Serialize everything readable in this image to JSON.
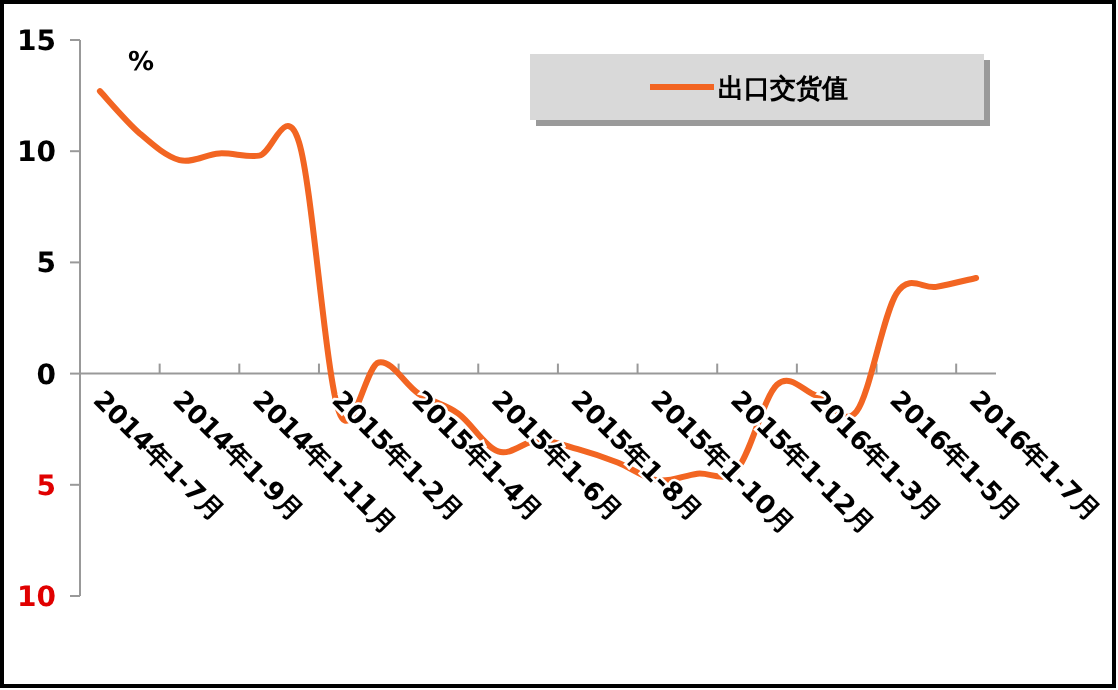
{
  "chart_data": {
    "type": "line",
    "categories": [
      "2014年1-7月",
      null,
      "2014年1-9月",
      null,
      "2014年1-11月",
      null,
      "2015年1-2月",
      null,
      "2015年1-4月",
      null,
      "2015年1-6月",
      null,
      "2015年1-8月",
      null,
      "2015年1-10月",
      null,
      "2015年1-12月",
      null,
      "2016年1-3月",
      null,
      "2016年1-5月",
      null,
      "2016年1-7月"
    ],
    "series": [
      {
        "name": "出口交货值",
        "color": "#f26522",
        "values": [
          12.7,
          10.8,
          9.6,
          9.9,
          9.8,
          10.4,
          -1.7,
          0.5,
          -0.9,
          -1.8,
          -3.5,
          -3.0,
          -3.4,
          -4.0,
          -4.8,
          -4.5,
          -4.3,
          -0.5,
          -1.0,
          -1.7,
          3.6,
          3.9,
          4.3
        ]
      }
    ],
    "ylabel": "%",
    "ylim": [
      -10,
      15
    ],
    "yticks": [
      {
        "value": -10,
        "label": "10"
      },
      {
        "value": -5,
        "label": "5"
      },
      0,
      5,
      10,
      15
    ],
    "legend": "top right",
    "grid": false,
    "marker": "none",
    "line_style": "solid"
  }
}
